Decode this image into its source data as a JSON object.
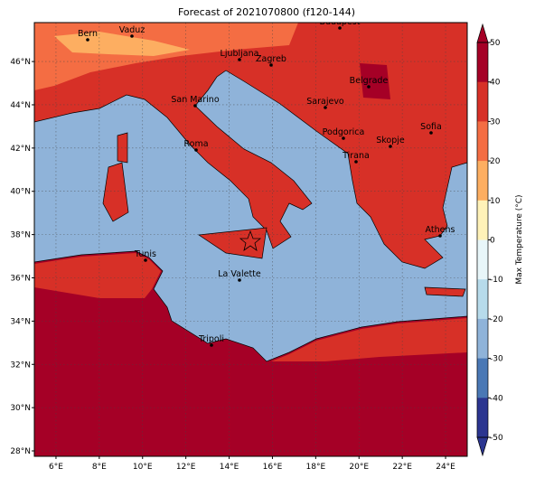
{
  "title": "Forecast of 2021070800 (f120-144)",
  "map": {
    "xlim": [
      5,
      25
    ],
    "ylim": [
      27.75,
      47.8
    ],
    "xticks": [
      {
        "value": 6,
        "label": "6°E"
      },
      {
        "value": 8,
        "label": "8°E"
      },
      {
        "value": 10,
        "label": "10°E"
      },
      {
        "value": 12,
        "label": "12°E"
      },
      {
        "value": 14,
        "label": "14°E"
      },
      {
        "value": 16,
        "label": "16°E"
      },
      {
        "value": 18,
        "label": "18°E"
      },
      {
        "value": 20,
        "label": "20°E"
      },
      {
        "value": 22,
        "label": "22°E"
      },
      {
        "value": 24,
        "label": "24°E"
      }
    ],
    "yticks": [
      {
        "value": 28,
        "label": "28°N"
      },
      {
        "value": 30,
        "label": "30°N"
      },
      {
        "value": 32,
        "label": "32°N"
      },
      {
        "value": 34,
        "label": "34°N"
      },
      {
        "value": 36,
        "label": "36°N"
      },
      {
        "value": 38,
        "label": "38°N"
      },
      {
        "value": 40,
        "label": "40°N"
      },
      {
        "value": 42,
        "label": "42°N"
      },
      {
        "value": 44,
        "label": "44°N"
      },
      {
        "value": 46,
        "label": "46°N"
      }
    ],
    "grid": true,
    "cities": [
      "Bern",
      "Vaduz",
      "Budapest",
      "Ljubljana",
      "Zagreb",
      "Belgrade",
      "Sarajevo",
      "San Marino",
      "Podgorica",
      "Sofia",
      "Skopje",
      "Roma",
      "Tirana",
      "Athens",
      "Tunis",
      "La Valette",
      "Tripoli"
    ]
  },
  "colorbar": {
    "label": "Max Temperature (°C)",
    "ticks": [
      50,
      40,
      30,
      20,
      10,
      0,
      -10,
      -20,
      -30,
      -40,
      -50
    ],
    "colors": [
      "#a50026",
      "#d73027",
      "#f46d43",
      "#fdae61",
      "#fff2b8",
      "#e8f6f9",
      "#b7dbeb",
      "#8fb3d9",
      "#4a78b5",
      "#2b3590"
    ]
  }
}
